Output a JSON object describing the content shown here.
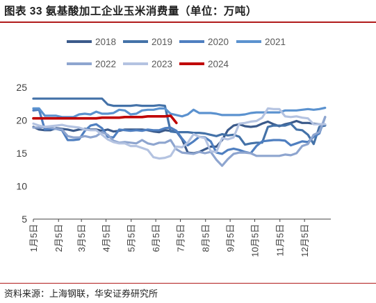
{
  "figure_title": "图表 33  氨基酸加工企业玉米消费量（单位：万吨）",
  "source_note": "资料来源：上海钢联，华安证券研究所",
  "chart_data": {
    "type": "line",
    "title": "",
    "xlabel": "",
    "ylabel": "",
    "unit": "万吨",
    "ylim": [
      5,
      25
    ],
    "yticks": [
      5,
      10,
      15,
      20,
      25
    ],
    "xlim": [
      0,
      52
    ],
    "xtick_positions": [
      0,
      4.4,
      8.4,
      12.7,
      17.1,
      21.4,
      25.7,
      30.1,
      34.4,
      38.7,
      43.1,
      47.4
    ],
    "xtick_labels": [
      "1月5日",
      "2月5日",
      "3月5日",
      "4月5日",
      "5月5日",
      "6月5日",
      "7月5日",
      "8月5日",
      "9月5日",
      "10月5日",
      "11月5日",
      "12月5日"
    ],
    "x_unit": "week",
    "grid": false,
    "legend_position": "top",
    "series": [
      {
        "name": "2018",
        "color": "#3b5a8a",
        "x": [
          0,
          1,
          2,
          3,
          4,
          5,
          6,
          7,
          8,
          9,
          10,
          11,
          12,
          13,
          14,
          15,
          16,
          17,
          18,
          19,
          20,
          21,
          22,
          23,
          24,
          25,
          26,
          27,
          28,
          29,
          30,
          31,
          32,
          33,
          34,
          35,
          36,
          37,
          38,
          39,
          40,
          41,
          42,
          43,
          44,
          45,
          46,
          47,
          48,
          49,
          50,
          51
        ],
        "y": [
          19.0,
          18.6,
          18.5,
          18.5,
          18.8,
          18.7,
          18.6,
          18.4,
          18.6,
          18.7,
          18.6,
          18.6,
          18.4,
          18.6,
          18.3,
          18.4,
          18.6,
          18.6,
          18.6,
          18.6,
          18.5,
          18.3,
          18.2,
          18.5,
          18.4,
          18.3,
          17.1,
          15.1,
          15.0,
          15.2,
          15.6,
          16.0,
          16.0,
          17.0,
          18.5,
          19.2,
          19.4,
          19.1,
          19.0,
          19.1,
          19.5,
          19.8,
          19.4,
          19.1,
          19.4,
          19.6,
          19.9,
          19.6,
          19.6,
          19.5,
          19.4,
          19.3
        ]
      },
      {
        "name": "2019",
        "color": "#4472a8",
        "x": [
          0,
          1,
          2,
          3,
          4,
          5,
          6,
          7,
          8,
          9,
          10,
          11,
          12,
          13,
          14,
          15,
          16,
          17,
          18,
          19,
          20,
          21,
          22,
          23,
          24,
          25,
          26,
          27,
          28,
          29,
          30,
          31,
          32,
          33,
          34,
          35,
          36,
          37,
          38,
          39,
          40,
          41,
          42,
          43,
          44,
          45,
          46,
          47,
          48,
          49,
          50,
          51
        ],
        "y": [
          23.3,
          23.3,
          23.3,
          23.3,
          23.3,
          23.3,
          23.3,
          23.3,
          23.3,
          23.3,
          23.3,
          23.3,
          23.3,
          22.4,
          22.2,
          22.2,
          22.2,
          22.2,
          22.3,
          22.2,
          22.2,
          22.2,
          22.3,
          22.2,
          18.3,
          18.2,
          18.2,
          18.2,
          18.1,
          18.1,
          18.0,
          17.8,
          17.6,
          17.9,
          17.7,
          17.8,
          17.5,
          16.3,
          16.5,
          16.6,
          16.6,
          19.0,
          19.2,
          19.2,
          19.2,
          19.5,
          18.6,
          18.5,
          17.8,
          16.4,
          19.0,
          19.2
        ]
      },
      {
        "name": "2020",
        "color": "#4f7fc0",
        "x": [
          0,
          1,
          2,
          3,
          4,
          5,
          6,
          7,
          8,
          9,
          10,
          11,
          12,
          13,
          14,
          15,
          16,
          17,
          18,
          19,
          20,
          21,
          22,
          23,
          24,
          25,
          26,
          27,
          28,
          29,
          30,
          31,
          32,
          33,
          34,
          35,
          36,
          37,
          38,
          39,
          40,
          41,
          42,
          43,
          44,
          45,
          46,
          47,
          48,
          49,
          50,
          51
        ],
        "y": [
          21.5,
          21.6,
          18.6,
          18.7,
          18.7,
          18.5,
          17.0,
          17.0,
          17.1,
          18.4,
          19.2,
          19.4,
          18.8,
          17.5,
          17.4,
          18.6,
          18.5,
          18.4,
          18.5,
          18.4,
          18.6,
          18.5,
          18.5,
          18.8,
          18.9,
          18.4,
          17.2,
          16.2,
          16.8,
          17.5,
          17.4,
          16.8,
          15.1,
          14.9,
          15.5,
          15.7,
          15.5,
          15.2,
          15.0,
          16.1,
          16.8,
          16.9,
          17.0,
          17.0,
          16.9,
          16.2,
          16.5,
          16.8,
          16.7,
          17.5,
          18.0,
          20.5
        ]
      },
      {
        "name": "2021",
        "color": "#5b92cf",
        "x": [
          0,
          1,
          2,
          3,
          4,
          5,
          6,
          7,
          8,
          9,
          10,
          11,
          12,
          13,
          14,
          15,
          16,
          17,
          18,
          19,
          20,
          21,
          22,
          23,
          24,
          25,
          26,
          27,
          28,
          29,
          30,
          31,
          32,
          33,
          34,
          35,
          36,
          37,
          38,
          39,
          40,
          41,
          42,
          43,
          44,
          45,
          46,
          47,
          48,
          49,
          50,
          51
        ],
        "y": [
          21.8,
          21.8,
          20.7,
          20.7,
          20.7,
          20.5,
          20.5,
          20.5,
          20.9,
          21.0,
          20.9,
          21.3,
          21.0,
          21.0,
          21.1,
          21.6,
          21.5,
          20.9,
          21.0,
          21.5,
          21.6,
          21.6,
          21.8,
          21.8,
          21.0,
          20.8,
          20.6,
          20.9,
          21.6,
          21.1,
          21.1,
          21.1,
          21.0,
          20.8,
          20.8,
          20.8,
          20.8,
          20.9,
          21.1,
          21.2,
          21.2,
          21.2,
          21.2,
          21.2,
          21.5,
          21.5,
          21.5,
          21.6,
          21.7,
          21.6,
          21.7,
          21.9
        ]
      },
      {
        "name": "2022",
        "color": "#8ea5cf",
        "x": [
          0,
          1,
          2,
          3,
          4,
          5,
          6,
          7,
          8,
          9,
          10,
          11,
          12,
          13,
          14,
          15,
          16,
          17,
          18,
          19,
          20,
          21,
          22,
          23,
          24,
          25,
          26,
          27,
          28,
          29,
          30,
          31,
          32,
          33,
          34,
          35,
          36,
          37,
          38,
          39,
          40,
          41,
          42,
          43,
          44,
          45,
          46,
          47,
          48,
          49,
          50,
          51
        ],
        "y": [
          18.9,
          18.9,
          19.0,
          18.9,
          18.7,
          18.6,
          17.6,
          17.4,
          17.4,
          17.6,
          17.4,
          17.6,
          18.2,
          17.8,
          16.9,
          16.6,
          16.7,
          16.6,
          16.5,
          17.0,
          16.5,
          16.3,
          16.6,
          16.6,
          17.0,
          15.6,
          15.1,
          15.0,
          14.9,
          15.2,
          15.0,
          15.2,
          14.0,
          13.1,
          14.1,
          14.9,
          15.1,
          15.1,
          15.0,
          14.6,
          14.6,
          14.6,
          14.6,
          14.6,
          14.8,
          14.7,
          15.0,
          16.1,
          16.4,
          17.8,
          18.2,
          20.5
        ]
      },
      {
        "name": "2023",
        "color": "#b4c3e1",
        "x": [
          0,
          1,
          2,
          3,
          4,
          5,
          6,
          7,
          8,
          9,
          10,
          11,
          12,
          13,
          14,
          15,
          16,
          17,
          18,
          19,
          20,
          21,
          22,
          23,
          24,
          25,
          26,
          27,
          28,
          29,
          30,
          31,
          32,
          33,
          34,
          35,
          36,
          37,
          38,
          39,
          40,
          41,
          42,
          43,
          44,
          45,
          46,
          47,
          48,
          49,
          50,
          51
        ],
        "y": [
          19.5,
          19.2,
          19.0,
          19.1,
          19.2,
          19.3,
          19.1,
          19.0,
          18.9,
          18.6,
          18.5,
          18.5,
          17.8,
          17.1,
          16.7,
          16.5,
          16.5,
          16.1,
          16.1,
          15.8,
          15.5,
          14.4,
          14.2,
          14.3,
          14.6,
          16.0,
          15.9,
          16.6,
          17.9,
          17.5,
          17.3,
          15.3,
          15.2,
          17.3,
          17.1,
          17.4,
          19.5,
          19.6,
          19.8,
          19.9,
          20.4,
          21.8,
          21.7,
          21.7,
          20.6,
          20.5,
          20.6,
          20.4,
          20.3,
          19.4,
          19.4,
          19.4
        ]
      },
      {
        "name": "2024",
        "color": "#c00000",
        "x": [
          0,
          1,
          2,
          3,
          4,
          5,
          6,
          7,
          8,
          9,
          10,
          11,
          12,
          13,
          14,
          15,
          16,
          17,
          18,
          19,
          20,
          21,
          22,
          23,
          24,
          25
        ],
        "y": [
          20.3,
          20.3,
          20.3,
          20.3,
          20.3,
          20.3,
          20.3,
          20.3,
          20.3,
          20.3,
          20.3,
          20.3,
          20.4,
          20.4,
          20.4,
          20.4,
          20.5,
          20.5,
          20.5,
          20.5,
          20.6,
          20.6,
          20.6,
          20.6,
          20.7,
          19.6
        ]
      }
    ]
  }
}
